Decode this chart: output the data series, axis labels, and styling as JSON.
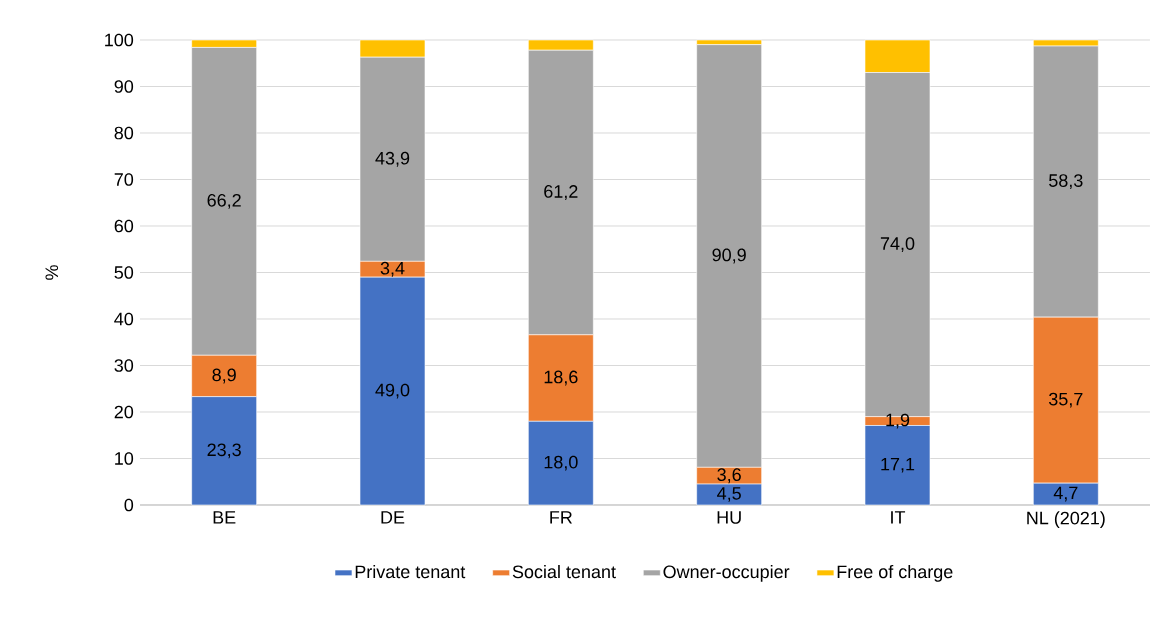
{
  "chart_data": {
    "type": "bar",
    "stacked": true,
    "ylabel": "%",
    "categories": [
      "BE",
      "DE",
      "FR",
      "HU",
      "IT",
      "NL (2021)"
    ],
    "series": [
      {
        "name": "Private tenant",
        "color": "#4472c4",
        "values": [
          23.3,
          49.0,
          18.0,
          4.5,
          17.1,
          4.7
        ],
        "value_labels": [
          "23,3",
          "49,0",
          "18,0",
          "4,5",
          "17,1",
          "4,7"
        ]
      },
      {
        "name": "Social tenant",
        "color": "#ed7d31",
        "values": [
          8.9,
          3.4,
          18.6,
          3.6,
          1.9,
          35.7
        ],
        "value_labels": [
          "8,9",
          "3,4",
          "18,6",
          "3,6",
          "1,9",
          "35,7"
        ]
      },
      {
        "name": "Owner-occupier",
        "color": "#a5a5a5",
        "values": [
          66.2,
          43.9,
          61.2,
          90.9,
          74.0,
          58.3
        ],
        "value_labels": [
          "66,2",
          "43,9",
          "61,2",
          "90,9",
          "74,0",
          "58,3"
        ]
      },
      {
        "name": "Free of charge",
        "color": "#ffc000",
        "values": [
          1.6,
          3.7,
          2.2,
          1.0,
          7.0,
          1.3
        ],
        "value_labels": [
          null,
          null,
          null,
          null,
          null,
          null
        ]
      }
    ],
    "ylim": [
      0,
      100
    ],
    "yticks": [
      0,
      10,
      20,
      30,
      40,
      50,
      60,
      70,
      80,
      90,
      100
    ],
    "grid": "y",
    "legend": "bottom"
  }
}
